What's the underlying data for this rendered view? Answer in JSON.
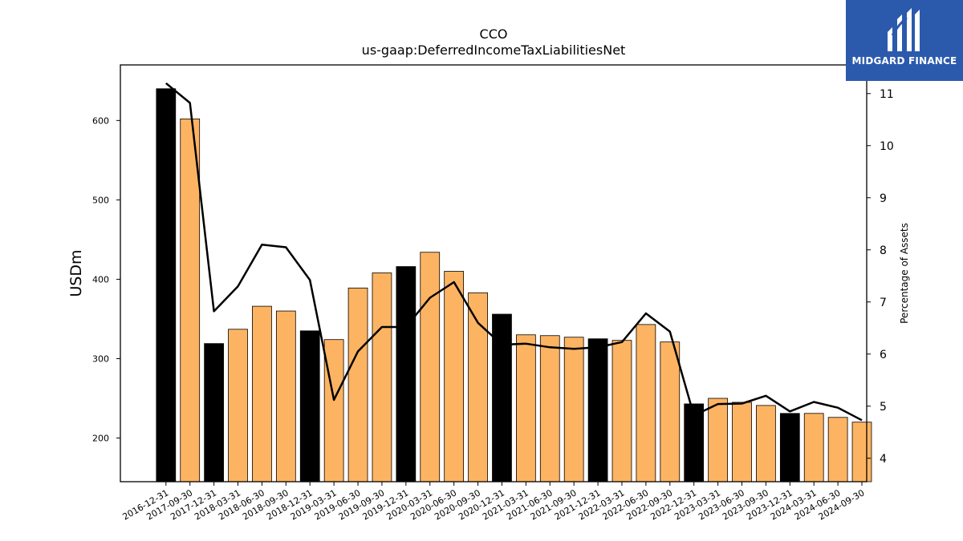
{
  "chart_data": {
    "type": "bar",
    "title": "CCO",
    "subtitle": "us-gaap:DeferredIncomeTaxLiabilitiesNet",
    "ylabel": "USDm",
    "y2label": "Percentage of Assets",
    "ylim": [
      145,
      670
    ],
    "y2lim": [
      3.55,
      11.55
    ],
    "yticks": [
      200,
      300,
      400,
      500,
      600
    ],
    "y2ticks": [
      4,
      5,
      6,
      7,
      8,
      9,
      10,
      11
    ],
    "categories": [
      "2016-12-31",
      "2017-09-30",
      "2017-12-31",
      "2018-03-31",
      "2018-06-30",
      "2018-09-30",
      "2018-12-31",
      "2019-03-31",
      "2019-06-30",
      "2019-09-30",
      "2019-12-31",
      "2020-03-31",
      "2020-06-30",
      "2020-09-30",
      "2020-12-31",
      "2021-03-31",
      "2021-06-30",
      "2021-09-30",
      "2021-12-31",
      "2022-03-31",
      "2022-06-30",
      "2022-09-30",
      "2022-12-31",
      "2023-03-31",
      "2023-06-30",
      "2023-09-30",
      "2023-12-31",
      "2024-03-31",
      "2024-06-30",
      "2024-09-30"
    ],
    "series": [
      {
        "type": "bar",
        "values": [
          640,
          602,
          319,
          337,
          366,
          360,
          335,
          324,
          389,
          408,
          416,
          434,
          410,
          383,
          356,
          330,
          329,
          327,
          325,
          323,
          343,
          321,
          243,
          250,
          245,
          241,
          231,
          231,
          226,
          220
        ],
        "year_end": [
          true,
          false,
          true,
          false,
          false,
          false,
          true,
          false,
          false,
          false,
          true,
          false,
          false,
          false,
          true,
          false,
          false,
          false,
          true,
          false,
          false,
          false,
          true,
          false,
          false,
          false,
          true,
          false,
          false,
          false
        ]
      },
      {
        "type": "line",
        "axis": "right",
        "values": [
          11.2,
          10.82,
          6.82,
          7.3,
          8.1,
          8.05,
          7.42,
          5.12,
          6.05,
          6.52,
          6.52,
          7.08,
          7.38,
          6.6,
          6.18,
          6.2,
          6.13,
          6.1,
          6.13,
          6.23,
          6.78,
          6.43,
          4.82,
          5.04,
          5.05,
          5.2,
          4.9,
          5.08,
          4.97,
          4.73
        ]
      }
    ],
    "colors": {
      "year_end_bar": "#000000",
      "quarter_bar": "#fdb462",
      "line": "#000000"
    },
    "grid": false
  },
  "logo": {
    "text": "MIDGARD FINANCE",
    "color": "#2b5aad"
  }
}
